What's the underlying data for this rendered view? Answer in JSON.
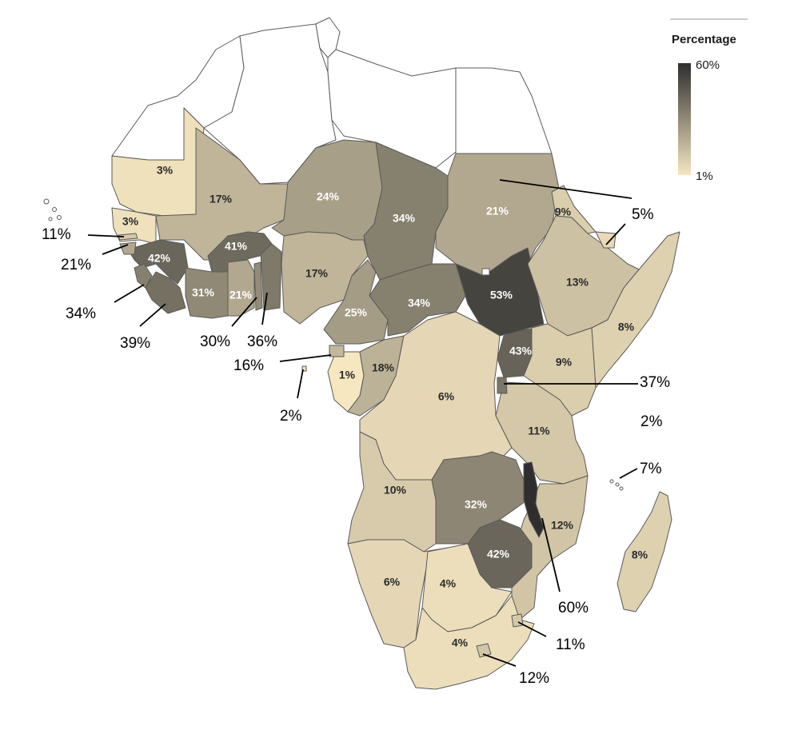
{
  "legend": {
    "title": "Percentage",
    "max_label": "60%",
    "min_label": "1%",
    "min_value": 1,
    "max_value": 60,
    "color_low": "#f6e7c1",
    "color_high": "#2e2e2e"
  },
  "regions": [
    {
      "id": "mauritania",
      "value": 3,
      "label": "3%"
    },
    {
      "id": "mali",
      "value": 17,
      "label": "17%"
    },
    {
      "id": "niger",
      "value": 24,
      "label": "24%"
    },
    {
      "id": "chad",
      "value": 34,
      "label": "34%"
    },
    {
      "id": "sudan",
      "value": 21,
      "label": "21%"
    },
    {
      "id": "eritrea",
      "value": 9,
      "label": "9%"
    },
    {
      "id": "senegal",
      "value": 3,
      "label": "3%"
    },
    {
      "id": "guinea",
      "value": 42,
      "label": "42%"
    },
    {
      "id": "burkina-faso",
      "value": 41,
      "label": "41%"
    },
    {
      "id": "nigeria",
      "value": 17,
      "label": "17%"
    },
    {
      "id": "cote-divoire",
      "value": 31,
      "label": "31%"
    },
    {
      "id": "ghana",
      "value": 21,
      "label": "21%"
    },
    {
      "id": "cameroon",
      "value": 25,
      "label": "25%"
    },
    {
      "id": "car",
      "value": 34,
      "label": "34%"
    },
    {
      "id": "south-sudan",
      "value": 53,
      "label": "53%"
    },
    {
      "id": "ethiopia",
      "value": 13,
      "label": "13%"
    },
    {
      "id": "somalia",
      "value": 8,
      "label": "8%"
    },
    {
      "id": "uganda",
      "value": 43,
      "label": "43%"
    },
    {
      "id": "kenya",
      "value": 9,
      "label": "9%"
    },
    {
      "id": "gabon",
      "value": 1,
      "label": "1%"
    },
    {
      "id": "congo",
      "value": 18,
      "label": "18%"
    },
    {
      "id": "drc",
      "value": 6,
      "label": "6%"
    },
    {
      "id": "tanzania",
      "value": 11,
      "label": "11%"
    },
    {
      "id": "angola",
      "value": 10,
      "label": "10%"
    },
    {
      "id": "zambia",
      "value": 32,
      "label": "32%"
    },
    {
      "id": "mozambique",
      "value": 12,
      "label": "12%"
    },
    {
      "id": "zimbabwe",
      "value": 42,
      "label": "42%"
    },
    {
      "id": "namibia",
      "value": 6,
      "label": "6%"
    },
    {
      "id": "botswana",
      "value": 4,
      "label": "4%"
    },
    {
      "id": "south-africa",
      "value": 4,
      "label": "4%"
    },
    {
      "id": "madagascar",
      "value": 8,
      "label": "8%"
    },
    {
      "id": "malawi",
      "value": 60,
      "label": "60%"
    },
    {
      "id": "gambia",
      "value": 11,
      "label": "11%"
    },
    {
      "id": "guinea-bissau",
      "value": 21,
      "label": "21%"
    },
    {
      "id": "sierra-leone",
      "value": 34,
      "label": "34%"
    },
    {
      "id": "liberia",
      "value": 39,
      "label": "39%"
    },
    {
      "id": "togo",
      "value": 30,
      "label": "30%"
    },
    {
      "id": "benin",
      "value": 36,
      "label": "36%"
    },
    {
      "id": "equatorial-guinea",
      "value": 16,
      "label": "16%"
    },
    {
      "id": "sao-tome",
      "value": 2,
      "label": "2%"
    },
    {
      "id": "rwanda-burundi",
      "value": 37,
      "label": "37%"
    },
    {
      "id": "seychelles",
      "value": 2,
      "label": "2%"
    },
    {
      "id": "comoros",
      "value": 7,
      "label": "7%"
    },
    {
      "id": "djibouti",
      "value": 5,
      "label": "5%"
    },
    {
      "id": "eswatini",
      "value": 11,
      "label": "11%"
    },
    {
      "id": "lesotho",
      "value": 12,
      "label": "12%"
    }
  ]
}
